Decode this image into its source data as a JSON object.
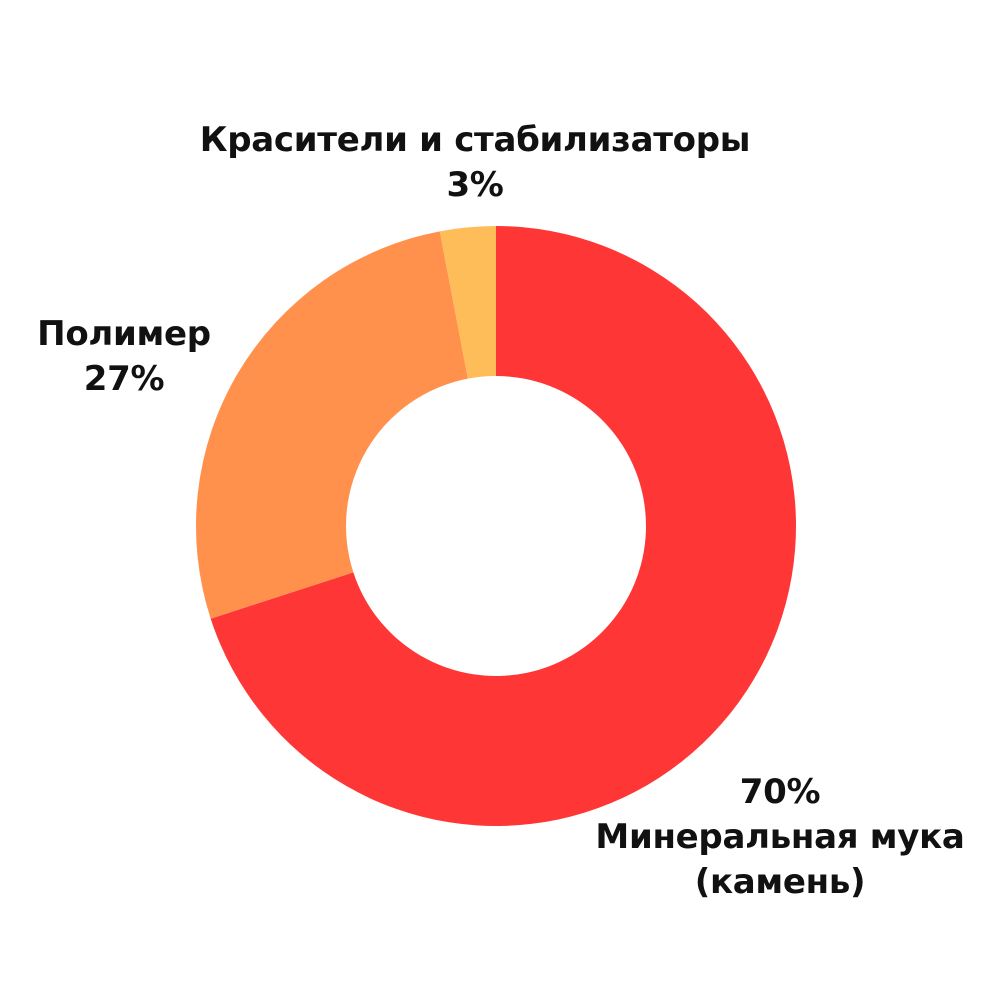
{
  "chart_data": {
    "type": "pie",
    "donut": true,
    "legend": "none",
    "slices": [
      {
        "name": "Минеральная мука",
        "name_line2": "(камень)",
        "value": 70,
        "value_label": "70%",
        "color": "#FF3636"
      },
      {
        "name": "Полимер",
        "value": 27,
        "value_label": "27%",
        "color": "#FF914D"
      },
      {
        "name": "Красители и стабилизаторы",
        "value": 3,
        "value_label": "3%",
        "color": "#FFBD59"
      }
    ]
  }
}
